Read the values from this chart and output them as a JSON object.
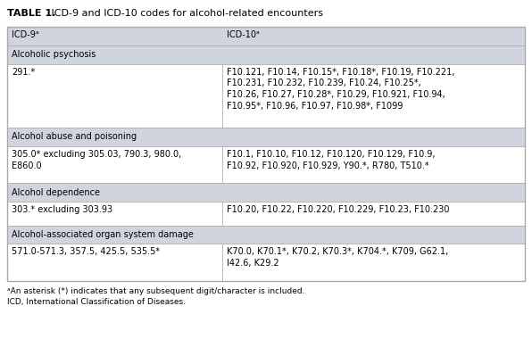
{
  "title_bold": "TABLE 1.",
  "title_regular": " ICD-9 and ICD-10 codes for alcohol-related encounters",
  "header_bg": "#d0d4de",
  "section_bg": "#d0d4de",
  "row_bg": "#ffffff",
  "border_color": "#aaaaaa",
  "col1_header": "ICD-9ᵃ",
  "col2_header": "ICD-10ᵃ",
  "col_split": 0.415,
  "sections": [
    {
      "type": "section",
      "label": "Alcoholic psychosis",
      "lines": 1
    },
    {
      "type": "row",
      "col1": "291.*",
      "col1_lines": 1,
      "col2": "F10.121, F10.14, F10.15*, F10.18*, F10.19, F10.221,\nF10.231, F10.232, F10.239, F10.24, F10.25*,\nF10.26, F10.27, F10.28*, F10.29, F10.921, F10.94,\nF10.95*, F10.96, F10.97, F10.98*, F1099",
      "col2_lines": 4
    },
    {
      "type": "section",
      "label": "Alcohol abuse and poisoning",
      "lines": 1
    },
    {
      "type": "row",
      "col1": "305.0* excluding 305.03, 790.3, 980.0,\nE860.0",
      "col1_lines": 2,
      "col2": "F10.1, F10.10, F10.12, F10.120, F10.129, F10.9,\nF10.92, F10.920, F10.929, Y90.*, R780, T510.*",
      "col2_lines": 2
    },
    {
      "type": "section",
      "label": "Alcohol dependence",
      "lines": 1
    },
    {
      "type": "row",
      "col1": "303.* excluding 303.93",
      "col1_lines": 1,
      "col2": "F10.20, F10.22, F10.220, F10.229, F10.23, F10.230",
      "col2_lines": 1
    },
    {
      "type": "section",
      "label": "Alcohol-associated organ system damage",
      "lines": 1
    },
    {
      "type": "row",
      "col1": "571.0-571.3, 357.5, 425.5, 535.5*",
      "col1_lines": 1,
      "col2": "K70.0, K70.1*, K70.2, K70.3*, K704.*, K709, G62.1,\nI42.6, K29.2",
      "col2_lines": 2
    }
  ],
  "footnote1": "ᵃAn asterisk (*) indicates that any subsequent digit/character is included.",
  "footnote2": "ICD, International Classification of Diseases.",
  "font_size": 7.0,
  "title_font_size": 8.0,
  "footnote_font_size": 6.5
}
